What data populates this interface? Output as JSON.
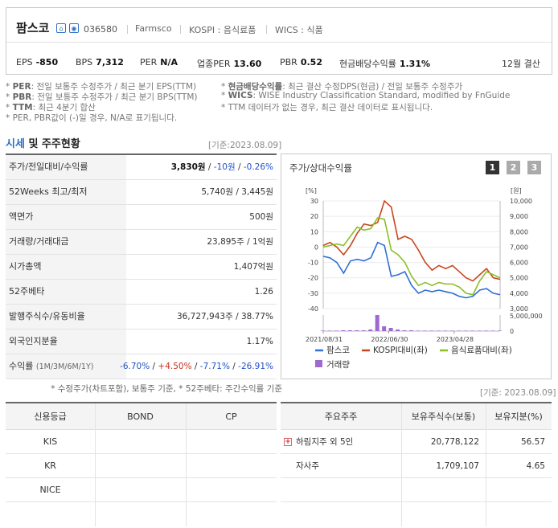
{
  "header": {
    "name": "팜스코",
    "code": "036580",
    "eng_name": "Farmsco",
    "market": "KOSPI : 음식료품",
    "wics": "WICS : 식품",
    "home_icon": "home-icon",
    "doc_icon": "report-icon",
    "metrics": [
      {
        "label": "EPS",
        "value": "-850"
      },
      {
        "label": "BPS",
        "value": "7,312"
      },
      {
        "label": "PER",
        "value": "N/A"
      },
      {
        "label": "업종PER",
        "value": "13.60"
      },
      {
        "label": "PBR",
        "value": "0.52"
      },
      {
        "label": "현금배당수익률",
        "value": "1.31%"
      }
    ],
    "settle": "12월 결산"
  },
  "notes": {
    "left": [
      {
        "key": "PER",
        "text": ": 전일 보통주 수정주가 / 최근 분기 EPS(TTM)"
      },
      {
        "key": "PBR",
        "text": ": 전일 보통주 수정주가 / 최근 분기 BPS(TTM)"
      },
      {
        "key": "TTM",
        "text": ": 최근 4분기 합산"
      },
      {
        "key": "",
        "text": "PER, PBR값이 (-)일 경우, N/A로 표기됩니다."
      }
    ],
    "right": [
      {
        "key": "현금배당수익률",
        "text": ": 최근 결산 수정DPS(현금) / 전일 보통주 수정주가"
      },
      {
        "key": "WICS",
        "text": ": WISE Industry Classification Standard, modified by FnGuide"
      },
      {
        "key": "",
        "text": "TTM 데이터가 없는 경우, 최근 결산 데이터로 표시됩니다."
      }
    ]
  },
  "market": {
    "title_a": "시세",
    "title_b": " 및 주주현황",
    "date": "[기준:2023.08.09]",
    "rows": [
      {
        "label": "주가/전일대비/수익률",
        "v1": "3,830원",
        "v2": "-10원",
        "v3": "-0.26%"
      },
      {
        "label": "52Weeks 최고/최저",
        "value": "5,740원 / 3,445원"
      },
      {
        "label": "액면가",
        "value": "500원"
      },
      {
        "label": "거래량/거래대금",
        "value": "23,895주 / 1억원"
      },
      {
        "label": "시가총액",
        "value": "1,407억원"
      },
      {
        "label": "52주베타",
        "value": "1.26"
      },
      {
        "label": "발행주식수/유동비율",
        "value": "36,727,943주 / 38.77%"
      },
      {
        "label": "외국인지분율",
        "value": "1.17%"
      }
    ],
    "returns": {
      "label": "수익률",
      "sub": "(1M/3M/6M/1Y)",
      "r1": "-6.70%",
      "r2": "+4.50%",
      "r3": "-7.71%",
      "r4": "-26.91%"
    },
    "footnote": "* 수정주가(차트포함), 보통주 기준, * 52주베타: 주간수익률 기준"
  },
  "chart": {
    "title": "주가/상대수익률",
    "pages": [
      "1",
      "2",
      "3"
    ],
    "colors": {
      "price": "#2f6fd6",
      "kospi": "#c8461e",
      "sector": "#8cbf26",
      "volume": "#9d6ad0"
    },
    "chart_data": {
      "type": "line",
      "left_axis_label": "[%]",
      "right_axis_label": "[원]",
      "left_ticks": [
        "30",
        "20",
        "10",
        "0",
        "-10",
        "-20",
        "-30",
        "-40"
      ],
      "right_ticks": [
        "10,000",
        "9,000",
        "8,000",
        "7,000",
        "6,000",
        "5,000",
        "4,000",
        "3,000"
      ],
      "volume_ticks": [
        "5,000,000",
        "0"
      ],
      "x_labels": [
        "2021/08/31",
        "2022/06/30",
        "2023/04/28"
      ],
      "ylim_left": [
        -40,
        30
      ],
      "ylim_right": [
        3000,
        10000
      ],
      "series": [
        {
          "name": "팜스코",
          "key": "price",
          "values": [
            -6,
            -7,
            -10,
            -17,
            -9,
            -8,
            -9,
            -7,
            3,
            1,
            -19,
            -18,
            -16,
            -25,
            -30,
            -28,
            -29,
            -28,
            -29,
            -30,
            -32,
            -33,
            -32,
            -28,
            -27,
            -30,
            -31
          ]
        },
        {
          "name": "KOSPI대비(좌)",
          "key": "kospi",
          "values": [
            1,
            3,
            0,
            -5,
            1,
            9,
            15,
            14,
            16,
            30,
            26,
            5,
            7,
            5,
            -2,
            -10,
            -15,
            -12,
            -14,
            -12,
            -16,
            -20,
            -22,
            -18,
            -14,
            -20,
            -21
          ]
        },
        {
          "name": "음식료품대비(좌)",
          "key": "sector",
          "values": [
            0,
            1,
            2,
            1,
            7,
            13,
            11,
            12,
            19,
            18,
            -2,
            -5,
            -10,
            -19,
            -25,
            -23,
            -25,
            -23,
            -24,
            -24,
            -26,
            -30,
            -31,
            -22,
            -16,
            -18,
            -20
          ]
        }
      ],
      "volume_name": "거래량",
      "volume": [
        0,
        0,
        0,
        0.05,
        0.05,
        0.05,
        0.05,
        0.1,
        1,
        0.3,
        0.2,
        0.1,
        0.05,
        0.05,
        0,
        0,
        0,
        0,
        0,
        0,
        0,
        0,
        0,
        0,
        0,
        0,
        0
      ]
    }
  },
  "credit": {
    "headers": [
      "신용등급",
      "BOND",
      "CP"
    ],
    "rows": [
      "KIS",
      "KR",
      "NICE"
    ]
  },
  "holders": {
    "date": "[기준: 2023.08.09]",
    "headers": [
      "주요주주",
      "보유주식수(보통)",
      "보유지분(%)"
    ],
    "rows": [
      {
        "name": "하림지주 외 5인",
        "shares": "20,778,122",
        "pct": "56.57"
      },
      {
        "name": "자사주",
        "shares": "1,709,107",
        "pct": "4.65"
      }
    ]
  }
}
